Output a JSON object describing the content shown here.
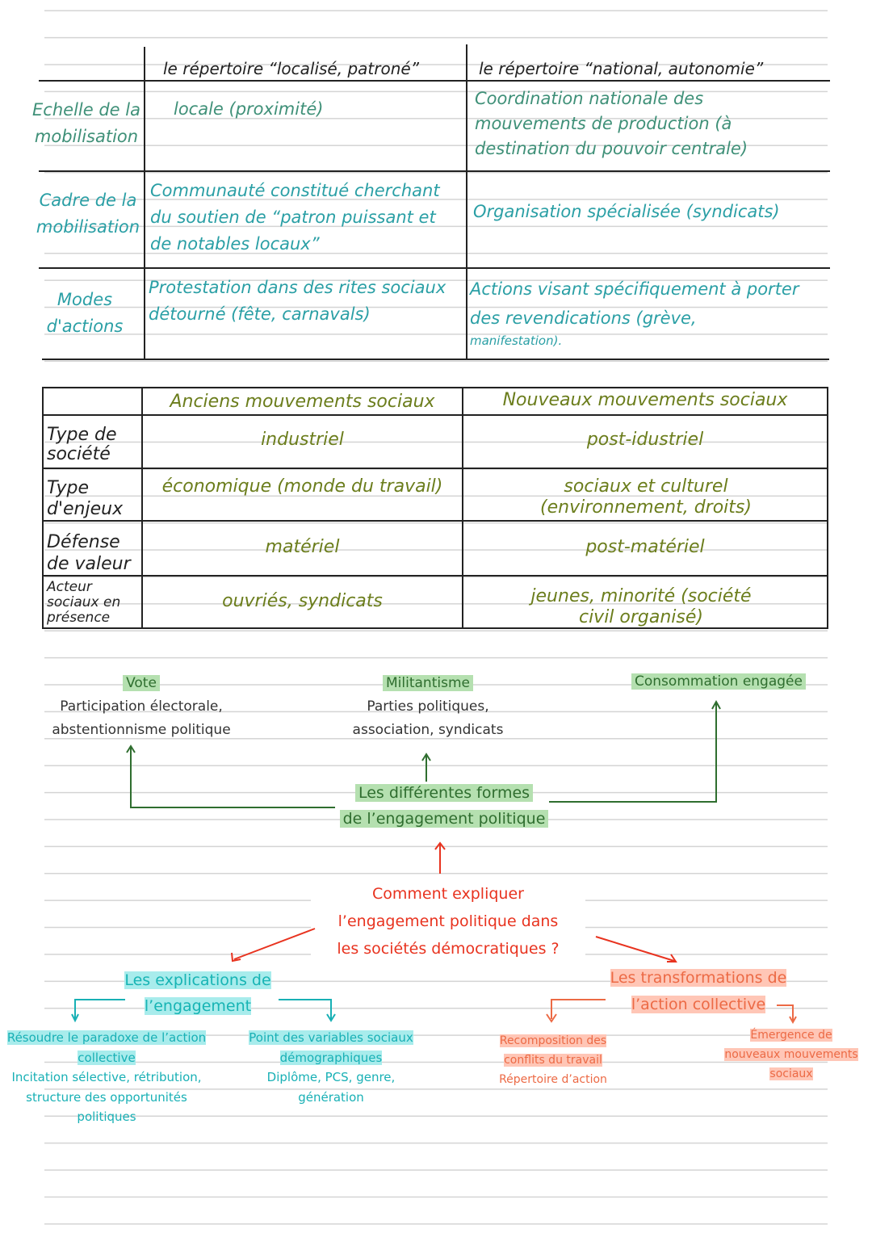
{
  "table1": {
    "headers": [
      "le répertoire “localisé, patroné”",
      "le répertoire “national, autonomie”"
    ],
    "rows": [
      {
        "label": "Echelle de la mobilisation",
        "col1": "locale (proximité)",
        "col2": "Coordination nationale des mouvements de production (à destination du pouvoir centrale)"
      },
      {
        "label": "Cadre de la mobilisation",
        "col1": "Communauté constitué cherchant du soutien de “patron puissant et de notables locaux”",
        "col2": "Organisation spécialisée (syndicats)"
      },
      {
        "label": "Modes d'actions",
        "col1": "Protestation dans des rites sociaux détourné (fête, carnavals)",
        "col2": "Actions visant spécifiquement à porter des revendications (grève,",
        "col2b": "manifestation)."
      }
    ]
  },
  "table2": {
    "headers": [
      "Anciens mouvements sociaux",
      "Nouveaux mouvements sociaux"
    ],
    "rows": [
      {
        "label": "Type de société",
        "col1": "industriel",
        "col2": "post-idustriel"
      },
      {
        "label": "Type d'enjeux",
        "col1": "économique (monde du travail)",
        "col2": "sociaux et culturel (environnement, droits)"
      },
      {
        "label": "Défense de valeur",
        "col1": "matériel",
        "col2": "post-matériel"
      },
      {
        "label": "Acteur sociaux en présence",
        "col1": "ouvriés, syndicats",
        "col2": "jeunes, minorité (société civil organisé)"
      }
    ]
  },
  "mindmap": {
    "vote": {
      "title": "Vote",
      "l1": "Participation électorale,",
      "l2": "abstentionnisme politique"
    },
    "militantisme": {
      "title": "Militantisme",
      "l1": "Parties politiques,",
      "l2": "association, syndicats"
    },
    "consommation": {
      "title": "Consommation engagée"
    },
    "formes": {
      "l1": "Les différentes formes",
      "l2": "de l’engagement politique"
    },
    "question": {
      "l1": "Comment expliquer",
      "l2": "l’engagement politique dans",
      "l3": "les sociétés démocratiques ?"
    },
    "explications": {
      "l1": "Les explications de",
      "l2": "l’engagement",
      "left": {
        "h1": "Résoudre le paradoxe de l’action",
        "h2": "collective",
        "l1": "Incitation sélective, rétribution,",
        "l2": "structure des opportunités",
        "l3": "politiques"
      },
      "right": {
        "h1": "Point des variables sociaux",
        "h2": "démographiques",
        "l1": "Diplôme, PCS, genre,",
        "l2": "génération"
      }
    },
    "transformations": {
      "l1": "Les transformations de",
      "l2": "l’action collective",
      "left": {
        "h1": "Recomposition des",
        "h2": "conflits du travail",
        "l1": "Répertoire d’action"
      },
      "right": {
        "h1": "Émergence de",
        "h2": "nouveaux mouvements",
        "h3": "sociaux"
      }
    }
  },
  "colors": {
    "table1_text": "#3f9078",
    "table1_text2": "#2a9fa5",
    "table2_text": "#6b7d1c",
    "question": "#e8331f",
    "explications": "#18b0b5",
    "transformations": "#ec6a45",
    "highlight_green": "#b5e0b0"
  }
}
